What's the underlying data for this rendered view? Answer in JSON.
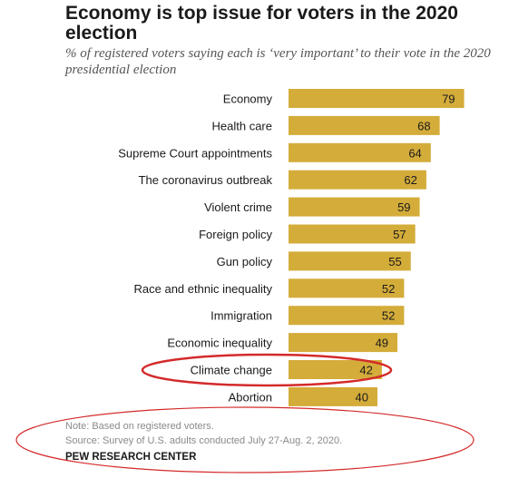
{
  "header": {
    "title": "Economy is top issue for voters in the 2020 election",
    "subtitle": "% of registered voters saying each is ‘very important’ to their vote in the 2020 presidential election"
  },
  "chart_data": {
    "type": "bar",
    "orientation": "horizontal",
    "categories": [
      "Economy",
      "Health care",
      "Supreme Court appointments",
      "The coronavirus outbreak",
      "Violent crime",
      "Foreign policy",
      "Gun policy",
      "Race and ethnic inequality",
      "Immigration",
      "Economic inequality",
      "Climate change",
      "Abortion"
    ],
    "values": [
      79,
      68,
      64,
      62,
      59,
      57,
      55,
      52,
      52,
      49,
      42,
      40
    ],
    "data_labels": [
      "79",
      "68",
      "64",
      "62",
      "59",
      "57",
      "55",
      "52",
      "52",
      "49",
      "42",
      "40"
    ],
    "xlim": [
      0,
      100
    ],
    "grid": false,
    "legend": "none",
    "bar_color": "#d4ac3a",
    "highlight_color": "#d42a2a",
    "highlighted_category": "Climate change"
  },
  "footer": {
    "note": "Note: Based on registered voters.",
    "source": "Source: Survey of U.S. adults conducted July 27-Aug. 2, 2020.",
    "organization": "PEW RESEARCH CENTER"
  }
}
